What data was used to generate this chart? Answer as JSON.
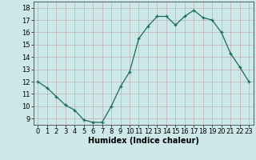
{
  "x": [
    0,
    1,
    2,
    3,
    4,
    5,
    6,
    7,
    8,
    9,
    10,
    11,
    12,
    13,
    14,
    15,
    16,
    17,
    18,
    19,
    20,
    21,
    22,
    23
  ],
  "y": [
    12.0,
    11.5,
    10.8,
    10.1,
    9.7,
    8.9,
    8.7,
    8.7,
    10.0,
    11.6,
    12.8,
    15.5,
    16.5,
    17.3,
    17.3,
    16.6,
    17.3,
    17.8,
    17.2,
    17.0,
    16.0,
    14.3,
    13.2,
    12.0
  ],
  "xlabel": "Humidex (Indice chaleur)",
  "xlim": [
    -0.5,
    23.5
  ],
  "ylim": [
    8.5,
    18.5
  ],
  "yticks": [
    9,
    10,
    11,
    12,
    13,
    14,
    15,
    16,
    17,
    18
  ],
  "xticks": [
    0,
    1,
    2,
    3,
    4,
    5,
    6,
    7,
    8,
    9,
    10,
    11,
    12,
    13,
    14,
    15,
    16,
    17,
    18,
    19,
    20,
    21,
    22,
    23
  ],
  "line_color": "#1a6b5a",
  "marker": "+",
  "bg_color": "#cce8e8",
  "grid_color": "#c0b0b0",
  "label_fontsize": 7,
  "tick_fontsize": 6
}
